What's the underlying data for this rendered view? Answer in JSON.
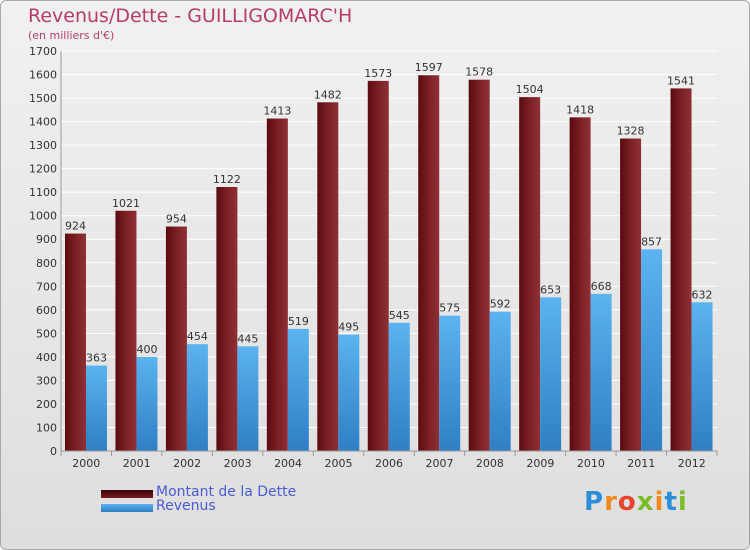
{
  "title": "Revenus/Dette - GUILLIGOMARC'H",
  "subtitle": "(en milliers d'€)",
  "colors": {
    "dette": "#7a1a20",
    "revenus": "#3d94dc",
    "title": "#b83b6b",
    "legend_text": "#4a5bd6"
  },
  "legend": {
    "dette_label": "Montant de la Dette",
    "revenus_label": "Revenus"
  },
  "logo": {
    "text": "Proxiti"
  },
  "chart_data": {
    "type": "bar",
    "categories": [
      "2000",
      "2001",
      "2002",
      "2003",
      "2004",
      "2005",
      "2006",
      "2007",
      "2008",
      "2009",
      "2010",
      "2011",
      "2012"
    ],
    "series": [
      {
        "name": "Montant de la Dette",
        "values": [
          924,
          1021,
          954,
          1122,
          1413,
          1482,
          1573,
          1597,
          1578,
          1504,
          1418,
          1328,
          1541
        ]
      },
      {
        "name": "Revenus",
        "values": [
          363,
          400,
          454,
          445,
          519,
          495,
          545,
          575,
          592,
          653,
          668,
          857,
          632
        ]
      }
    ],
    "ylim": [
      0,
      1700
    ],
    "yticks": [
      0,
      100,
      200,
      300,
      400,
      500,
      600,
      700,
      800,
      900,
      1000,
      1100,
      1200,
      1300,
      1400,
      1500,
      1600,
      1700
    ],
    "grid": true,
    "data_labels": true
  }
}
